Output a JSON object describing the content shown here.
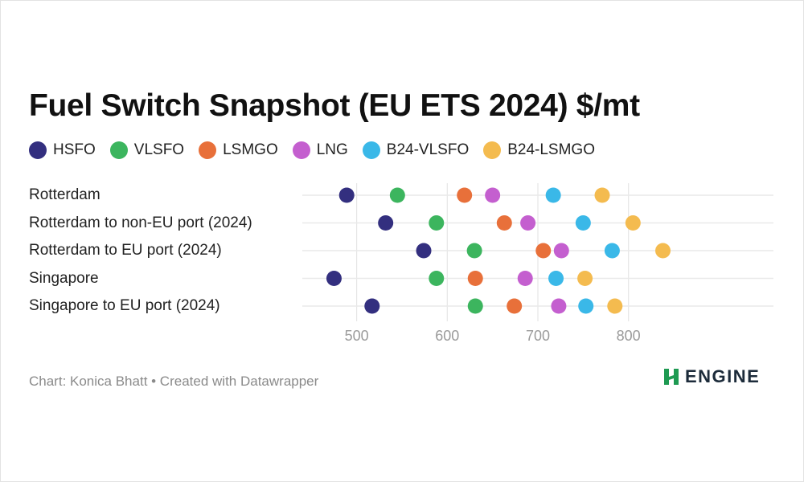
{
  "chart_data": {
    "type": "scatter",
    "title": "Fuel Switch Snapshot (EU ETS 2024) $/mt",
    "categories": [
      "Rotterdam",
      "Rotterdam to non-EU port (2024)",
      "Rotterdam to EU port (2024)",
      "Singapore",
      "Singapore to EU port (2024)"
    ],
    "x_ticks": [
      500,
      600,
      700,
      800
    ],
    "xlim": [
      440,
      960
    ],
    "series": [
      {
        "name": "HSFO",
        "color": "#332f7f",
        "values": [
          489,
          532,
          574,
          475,
          517
        ]
      },
      {
        "name": "VLSFO",
        "color": "#3cb55e",
        "values": [
          545,
          588,
          630,
          588,
          631
        ]
      },
      {
        "name": "LSMGO",
        "color": "#e8703a",
        "values": [
          619,
          663,
          706,
          631,
          674
        ]
      },
      {
        "name": "LNG",
        "color": "#c45fcf",
        "values": [
          650,
          689,
          726,
          686,
          723
        ]
      },
      {
        "name": "B24-VLSFO",
        "color": "#3ab8e8",
        "values": [
          717,
          750,
          782,
          720,
          753
        ]
      },
      {
        "name": "B24-LSMGO",
        "color": "#f4bb4f",
        "values": [
          771,
          805,
          838,
          752,
          785
        ]
      }
    ]
  },
  "footer": {
    "credit": "Chart: Konica Bhatt • Created with Datawrapper",
    "brand": "ENGINE",
    "brand_color": "#1e9a52"
  }
}
